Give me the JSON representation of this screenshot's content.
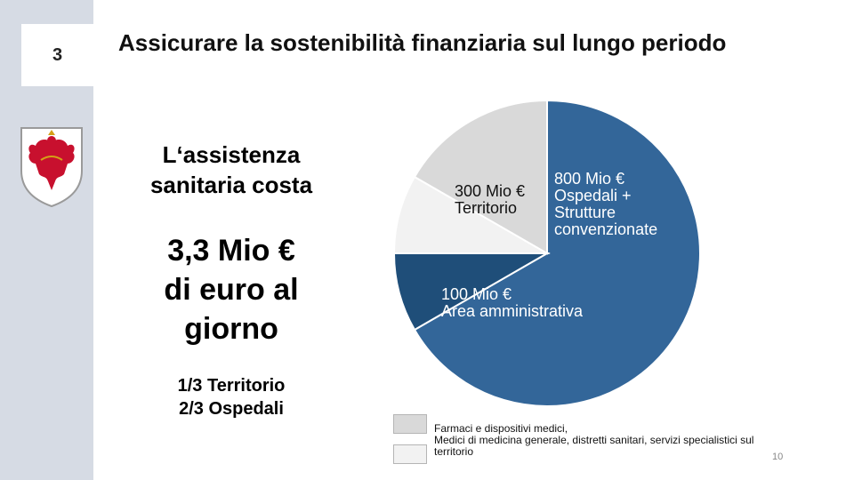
{
  "slide": {
    "chapter_number": "3",
    "title": "Assicurare la sostenibilità finanziaria sul lungo periodo",
    "lead_lines": [
      "L‘assistenza",
      "sanitaria costa"
    ],
    "big_lines": [
      "3,3 Mio €",
      "di euro al",
      "giorno"
    ],
    "split_lines": [
      "1/3 Territorio",
      "2/3 Ospedali"
    ],
    "page_number": "10"
  },
  "legend": {
    "items": [
      {
        "text": "Farmaci e dispositivi medici,",
        "color": "#d9d9d9"
      },
      {
        "text": "Medici di medicina generale, distretti sanitari, servizi specialistici sul",
        "color": "#f2f2f2"
      }
    ],
    "continuation": "territorio"
  },
  "chart_data": {
    "type": "pie",
    "slices": [
      {
        "label_lines": [
          "800 Mio €",
          "Ospedali +",
          "Strutture",
          "convenzionate"
        ],
        "value": 800,
        "color": "#336699"
      },
      {
        "label_lines": [
          "100 Mio €",
          "Area amministrativa"
        ],
        "value": 100,
        "color": "#1f4e79"
      },
      {
        "label_lines": [],
        "value": 100,
        "color": "#f2f2f2"
      },
      {
        "label_lines": [
          "300 Mio €",
          "Territorio"
        ],
        "value": 200,
        "color": "#d9d9d9"
      }
    ]
  }
}
